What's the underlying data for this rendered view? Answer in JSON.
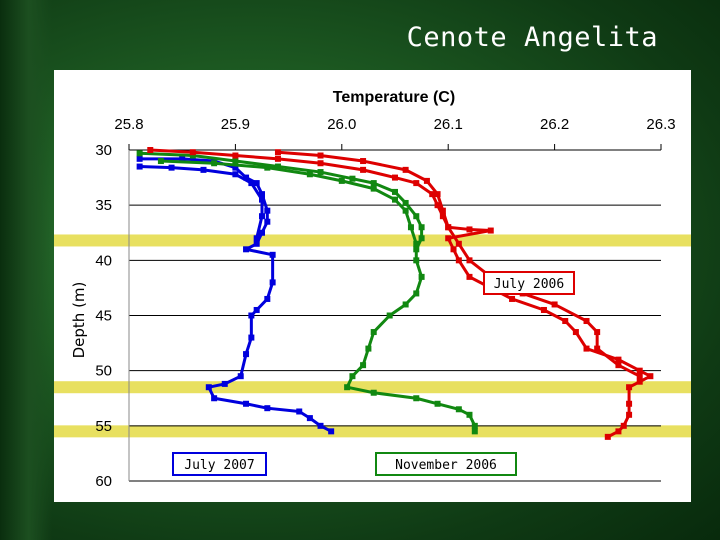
{
  "slide": {
    "title": "Cenote Angelita"
  },
  "chart_data": {
    "type": "line",
    "title": "Temperature (C)",
    "xlabel": "Temperature (C)",
    "ylabel": "Depth (m)",
    "xlim": [
      25.8,
      26.3
    ],
    "ylim": [
      60,
      30
    ],
    "x_ticks": [
      "25.8",
      "25.9",
      "26.0",
      "26.1",
      "26.2",
      "26.3"
    ],
    "y_ticks": [
      "30",
      "35",
      "40",
      "45",
      "50",
      "55",
      "60"
    ],
    "x_axis_position": "top",
    "grid": "horizontal",
    "highlight_bands": [
      38.2,
      51.5,
      55.5
    ],
    "series": [
      {
        "name": "July 2007",
        "color": "#0000dd",
        "points": [
          [
            25.81,
            30.8
          ],
          [
            25.85,
            30.8
          ],
          [
            25.88,
            31.0
          ],
          [
            25.9,
            31.6
          ],
          [
            25.91,
            32.5
          ],
          [
            25.92,
            33.0
          ],
          [
            25.925,
            34.0
          ],
          [
            25.93,
            35.5
          ],
          [
            25.93,
            36.5
          ],
          [
            25.925,
            37.5
          ],
          [
            25.92,
            38.5
          ],
          [
            25.91,
            39.0
          ],
          [
            25.935,
            39.5
          ],
          [
            25.935,
            42.0
          ],
          [
            25.93,
            43.5
          ],
          [
            25.92,
            44.5
          ],
          [
            25.915,
            45.0
          ],
          [
            25.915,
            47.0
          ],
          [
            25.91,
            48.5
          ],
          [
            25.905,
            50.5
          ],
          [
            25.89,
            51.2
          ],
          [
            25.875,
            51.5
          ],
          [
            25.88,
            52.5
          ],
          [
            25.91,
            53.0
          ],
          [
            25.93,
            53.4
          ],
          [
            25.96,
            53.7
          ],
          [
            25.97,
            54.3
          ],
          [
            25.98,
            55.0
          ],
          [
            25.99,
            55.5
          ]
        ]
      },
      {
        "name": "",
        "color": "#0000dd",
        "points": [
          [
            25.81,
            31.5
          ],
          [
            25.84,
            31.6
          ],
          [
            25.87,
            31.8
          ],
          [
            25.9,
            32.2
          ],
          [
            25.915,
            33.0
          ],
          [
            25.925,
            34.5
          ],
          [
            25.925,
            36.0
          ],
          [
            25.92,
            38.0
          ]
        ]
      },
      {
        "name": "November 2006",
        "color": "#118811",
        "points": [
          [
            25.81,
            30.3
          ],
          [
            25.86,
            30.5
          ],
          [
            25.9,
            31.0
          ],
          [
            25.94,
            31.5
          ],
          [
            25.98,
            32.0
          ],
          [
            26.01,
            32.6
          ],
          [
            26.03,
            33.0
          ],
          [
            26.05,
            33.8
          ],
          [
            26.06,
            34.8
          ],
          [
            26.07,
            36.0
          ],
          [
            26.075,
            37.0
          ],
          [
            26.075,
            38.0
          ],
          [
            26.07,
            39.0
          ],
          [
            26.07,
            40.0
          ],
          [
            26.075,
            41.5
          ],
          [
            26.07,
            43.0
          ],
          [
            26.06,
            44.0
          ],
          [
            26.045,
            45.0
          ],
          [
            26.03,
            46.5
          ],
          [
            26.025,
            48.0
          ],
          [
            26.02,
            49.5
          ],
          [
            26.01,
            50.5
          ],
          [
            26.005,
            51.5
          ],
          [
            26.03,
            52.0
          ],
          [
            26.07,
            52.5
          ],
          [
            26.09,
            53.0
          ],
          [
            26.11,
            53.5
          ],
          [
            26.12,
            54.0
          ],
          [
            26.125,
            55.0
          ],
          [
            26.125,
            55.5
          ]
        ]
      },
      {
        "name": "",
        "color": "#118811",
        "points": [
          [
            25.83,
            31.0
          ],
          [
            25.88,
            31.2
          ],
          [
            25.93,
            31.6
          ],
          [
            25.97,
            32.2
          ],
          [
            26.0,
            32.8
          ],
          [
            26.03,
            33.5
          ],
          [
            26.05,
            34.5
          ],
          [
            26.06,
            35.5
          ],
          [
            26.065,
            37.0
          ],
          [
            26.07,
            38.5
          ]
        ]
      },
      {
        "name": "July 2006",
        "color": "#dd0000",
        "points": [
          [
            25.82,
            30.0
          ],
          [
            25.86,
            30.2
          ],
          [
            25.9,
            30.5
          ],
          [
            25.94,
            30.8
          ],
          [
            25.98,
            31.2
          ],
          [
            26.02,
            31.8
          ],
          [
            26.05,
            32.5
          ],
          [
            26.07,
            33.0
          ],
          [
            26.085,
            34.0
          ],
          [
            26.09,
            35.0
          ],
          [
            26.095,
            36.0
          ],
          [
            26.1,
            37.0
          ],
          [
            26.12,
            37.2
          ],
          [
            26.14,
            37.3
          ],
          [
            26.1,
            38.0
          ],
          [
            26.105,
            39.0
          ],
          [
            26.11,
            40.0
          ],
          [
            26.12,
            41.5
          ],
          [
            26.14,
            42.5
          ],
          [
            26.16,
            43.5
          ],
          [
            26.19,
            44.5
          ],
          [
            26.21,
            45.5
          ],
          [
            26.22,
            46.5
          ],
          [
            26.23,
            48.0
          ],
          [
            26.26,
            49.0
          ],
          [
            26.28,
            50.0
          ],
          [
            26.29,
            50.5
          ],
          [
            26.28,
            51.0
          ],
          [
            26.27,
            51.5
          ],
          [
            26.27,
            53.0
          ],
          [
            26.27,
            54.0
          ],
          [
            26.265,
            55.0
          ],
          [
            26.26,
            55.5
          ],
          [
            26.25,
            56.0
          ]
        ]
      },
      {
        "name": "",
        "color": "#dd0000",
        "points": [
          [
            25.94,
            30.2
          ],
          [
            25.98,
            30.5
          ],
          [
            26.02,
            31.0
          ],
          [
            26.06,
            31.8
          ],
          [
            26.08,
            32.8
          ],
          [
            26.09,
            34.0
          ],
          [
            26.095,
            35.5
          ],
          [
            26.1,
            37.0
          ],
          [
            26.11,
            38.5
          ],
          [
            26.12,
            40.0
          ],
          [
            26.14,
            41.5
          ],
          [
            26.17,
            43.0
          ],
          [
            26.2,
            44.0
          ],
          [
            26.23,
            45.5
          ],
          [
            26.24,
            46.5
          ],
          [
            26.24,
            48.0
          ],
          [
            26.26,
            49.5
          ],
          [
            26.28,
            50.5
          ]
        ]
      }
    ],
    "legend": [
      {
        "label": "July 2006",
        "color": "#dd0000",
        "placement": "right"
      },
      {
        "label": "July 2007",
        "color": "#0000dd",
        "placement": "bottom-left"
      },
      {
        "label": "November 2006",
        "color": "#118811",
        "placement": "bottom-center"
      }
    ],
    "colors": {
      "band": "#e8e060",
      "grid": "#000000"
    }
  }
}
